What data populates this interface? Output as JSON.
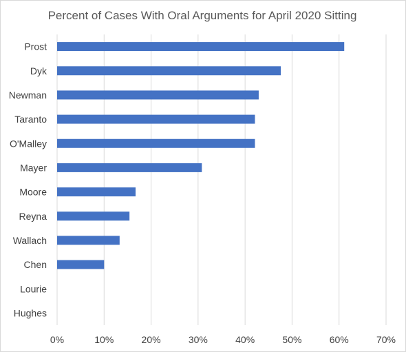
{
  "chart_data": {
    "type": "bar",
    "orientation": "horizontal",
    "title": "Percent of Cases With Oral Arguments for April 2020 Sitting",
    "xlabel": "",
    "ylabel": "",
    "categories": [
      "Prost",
      "Dyk",
      "Newman",
      "Taranto",
      "O'Malley",
      "Mayer",
      "Moore",
      "Reyna",
      "Wallach",
      "Chen",
      "Lourie",
      "Hughes"
    ],
    "values": [
      61.1,
      47.6,
      42.9,
      42.1,
      42.1,
      30.8,
      16.7,
      15.4,
      13.3,
      10.0,
      0,
      0
    ],
    "xlim": [
      0,
      70
    ],
    "xticks": [
      0,
      10,
      20,
      30,
      40,
      50,
      60,
      70
    ],
    "xtick_labels": [
      "0%",
      "10%",
      "20%",
      "30%",
      "40%",
      "50%",
      "60%",
      "70%"
    ],
    "grid": "vertical",
    "legend": "none",
    "bar_color": "#4472c4"
  }
}
